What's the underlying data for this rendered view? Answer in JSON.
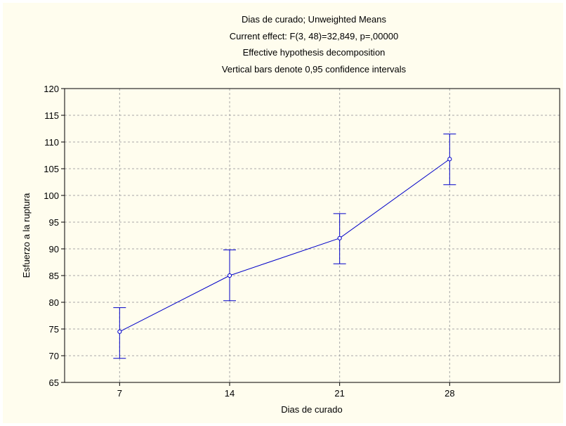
{
  "chart_data": {
    "type": "line",
    "title": [
      "Dias de curado; Unweighted Means",
      "Current effect: F(3, 48)=32,849, p=,00000",
      "Effective hypothesis decomposition",
      "Vertical bars denote 0,95 confidence intervals"
    ],
    "xlabel": "Dias de curado",
    "ylabel": "Esfuerzo a la ruptura",
    "categories": [
      "7",
      "14",
      "21",
      "28"
    ],
    "y": [
      74.5,
      85.0,
      92.0,
      106.8
    ],
    "ci_lower": [
      69.5,
      80.3,
      87.2,
      102.0
    ],
    "ci_upper": [
      79.0,
      89.8,
      96.6,
      111.5
    ],
    "ylim": [
      65,
      120
    ],
    "yticks": [
      "65",
      "70",
      "75",
      "80",
      "85",
      "90",
      "95",
      "100",
      "105",
      "110",
      "115",
      "120"
    ],
    "grid": true,
    "line_color": "#0000c8"
  }
}
